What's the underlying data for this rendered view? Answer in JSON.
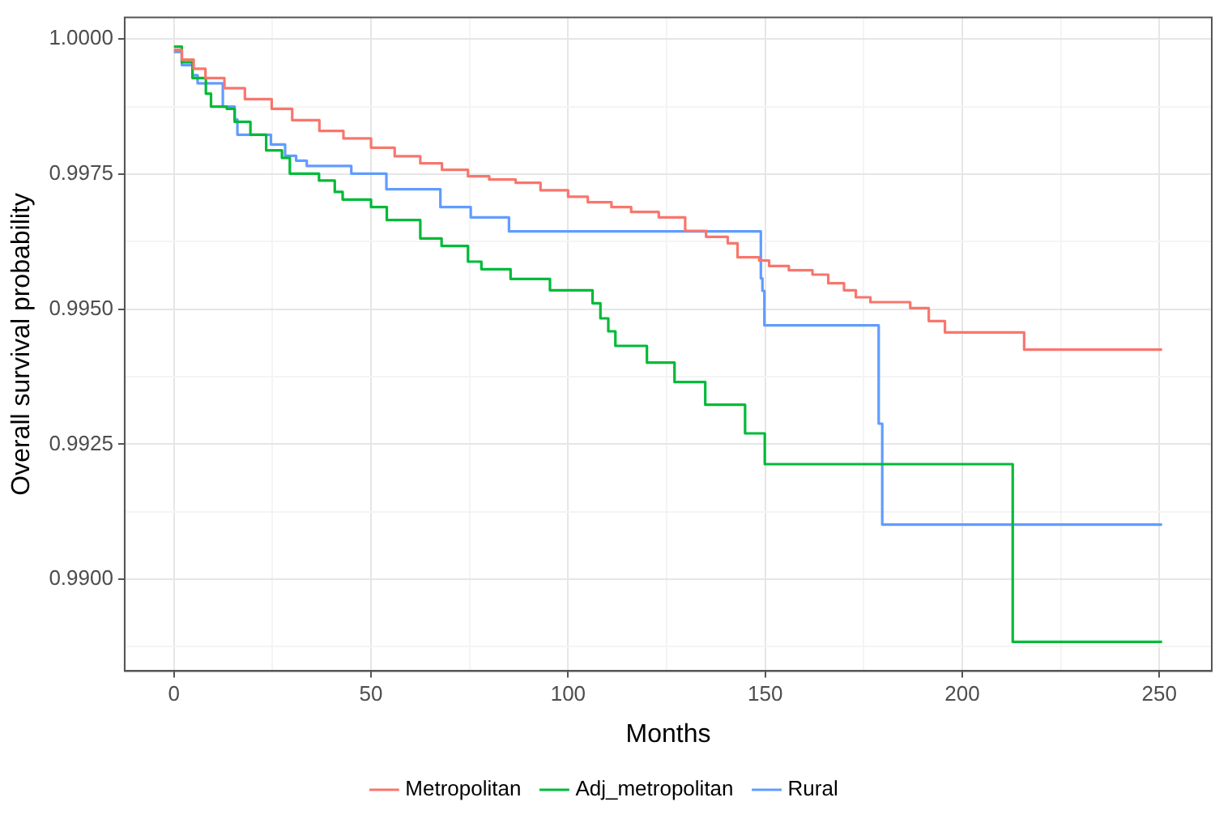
{
  "chart_data": {
    "type": "step",
    "xlabel": "Months",
    "ylabel": "Overall survival probability",
    "xlim": [
      -12.5,
      263.3
    ],
    "ylim": [
      0.9883,
      1.0004
    ],
    "xticks": [
      0,
      {
        "value": 25,
        "label": null
      },
      50,
      {
        "value": 75,
        "label": null
      },
      100,
      {
        "value": 125,
        "label": null
      },
      150,
      {
        "value": 175,
        "label": null
      },
      200,
      {
        "value": 225,
        "label": null
      },
      250
    ],
    "yticks": [
      {
        "value": 0.98875,
        "label": null
      },
      {
        "value": 0.99,
        "label": "0.9900"
      },
      {
        "value": 0.99125,
        "label": null
      },
      {
        "value": 0.9925,
        "label": "0.9925"
      },
      {
        "value": 0.99375,
        "label": null
      },
      {
        "value": 0.995,
        "label": "0.9950"
      },
      {
        "value": 0.99625,
        "label": null
      },
      {
        "value": 0.9975,
        "label": "0.9975"
      },
      {
        "value": 0.99875,
        "label": null
      },
      {
        "value": 1,
        "label": "1.0000"
      }
    ],
    "grid": true,
    "legend": "bottom",
    "marker": "none",
    "line_style": "solid",
    "series": [
      {
        "name": "Metropolitan",
        "color": "#f8766d",
        "x": [
          0,
          2,
          5,
          8,
          12.8,
          18,
          24.8,
          30,
          36.9,
          43,
          50,
          56,
          62.5,
          68,
          74.6,
          80,
          86.7,
          93,
          100,
          105,
          111,
          116,
          123,
          129.7,
          135,
          140.5,
          143,
          148.5,
          151,
          156,
          162,
          166,
          170,
          173,
          176.7,
          186.8,
          191.5,
          195.6,
          215.7,
          250.7
        ],
        "values": [
          0.9998,
          0.99962,
          0.99945,
          0.99928,
          0.99909,
          0.99889,
          0.99871,
          0.9985,
          0.9983,
          0.99816,
          0.99799,
          0.99783,
          0.9977,
          0.99758,
          0.99746,
          0.9974,
          0.99734,
          0.9972,
          0.99708,
          0.99698,
          0.99689,
          0.9968,
          0.9967,
          0.99645,
          0.99634,
          0.99622,
          0.99596,
          0.9959,
          0.9958,
          0.99572,
          0.99564,
          0.99548,
          0.99535,
          0.99522,
          0.99513,
          0.99502,
          0.99478,
          0.99457,
          0.99425,
          0.99425
        ]
      },
      {
        "name": "Adj_metropolitan",
        "color": "#00ba38",
        "x": [
          0,
          2,
          4.7,
          8.1,
          9.4,
          13.4,
          15.4,
          19.4,
          23.4,
          27.4,
          29.4,
          36.8,
          40.8,
          42.8,
          50,
          54,
          62.5,
          67.9,
          74.6,
          78,
          85.4,
          95.4,
          106.2,
          108.2,
          110.2,
          112,
          120,
          127,
          134.8,
          144.9,
          149.9,
          212.8,
          250.7
        ],
        "values": [
          0.99986,
          0.99957,
          0.99928,
          0.99899,
          0.99875,
          0.99871,
          0.99847,
          0.99823,
          0.99794,
          0.9978,
          0.99751,
          0.99738,
          0.99717,
          0.99703,
          0.99689,
          0.99665,
          0.99631,
          0.99617,
          0.99588,
          0.99574,
          0.99556,
          0.99535,
          0.99511,
          0.99483,
          0.99459,
          0.99432,
          0.99401,
          0.99365,
          0.99323,
          0.9927,
          0.99213,
          0.98884,
          0.98884
        ]
      },
      {
        "name": "Rural",
        "color": "#619cff",
        "x": [
          0,
          2,
          4.7,
          6,
          12.4,
          15.4,
          16.1,
          24.6,
          28.2,
          31,
          33.7,
          45,
          53.9,
          67.6,
          75.3,
          85,
          148.9,
          149.3,
          149.8,
          178.8,
          179.7,
          250.7
        ],
        "values": [
          0.99976,
          0.99952,
          0.99933,
          0.99918,
          0.99875,
          0.99851,
          0.99823,
          0.99805,
          0.99784,
          0.99775,
          0.99765,
          0.99751,
          0.99722,
          0.99689,
          0.9967,
          0.99644,
          0.99557,
          0.99534,
          0.9947,
          0.99288,
          0.99101,
          0.99101
        ]
      }
    ]
  }
}
